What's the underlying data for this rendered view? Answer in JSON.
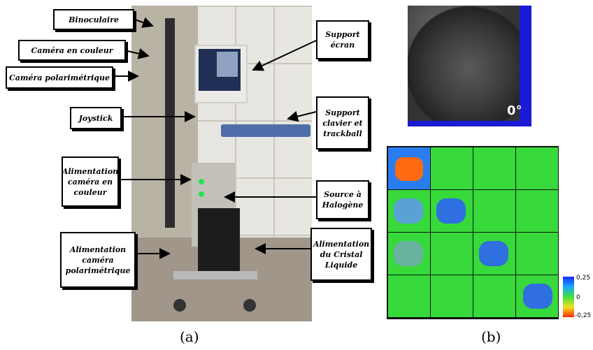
{
  "labels": {
    "binoculaire": "Binoculaire",
    "camera_couleur": "Caméra en couleur",
    "camera_polar": "Caméra polarimétrique",
    "joystick": "Joystick",
    "alim_couleur": "Alimentation caméra en couleur",
    "alim_polar": "Alimentation caméra polarimétrique",
    "support_ecran": "Support écran",
    "support_clavier": "Support clavier et trackball",
    "source_halogene": "Source à Halogène",
    "alim_cristal": "Alimentation du Cristal Liquide"
  },
  "captions": {
    "a": "(a)",
    "b": "(b)"
  },
  "thermal": {
    "angle_label": "0°"
  },
  "legend": {
    "max": "0,25",
    "mid": "0",
    "min": "-0,25"
  },
  "colors": {
    "grid_green": "#37d93b",
    "blue": "#1b1bd6",
    "orange": "#ff6a12"
  }
}
